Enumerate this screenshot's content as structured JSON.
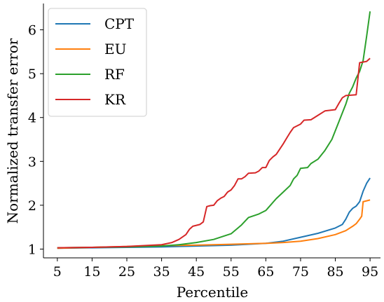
{
  "chart_data": {
    "type": "line",
    "title": "",
    "xlabel": "Percentile",
    "ylabel": "Normalized transfer error",
    "xlim": [
      1,
      98
    ],
    "ylim": [
      0.8,
      6.6
    ],
    "xticks": [
      5,
      15,
      25,
      35,
      45,
      55,
      65,
      75,
      85,
      95
    ],
    "yticks": [
      1,
      2,
      3,
      4,
      5,
      6
    ],
    "grid": false,
    "legend_position": "top-left",
    "series": [
      {
        "name": "CPT",
        "color": "#1f77b4",
        "points": [
          [
            5,
            1.02
          ],
          [
            15,
            1.03
          ],
          [
            25,
            1.04
          ],
          [
            35,
            1.05
          ],
          [
            45,
            1.07
          ],
          [
            55,
            1.09
          ],
          [
            65,
            1.13
          ],
          [
            70,
            1.18
          ],
          [
            75,
            1.27
          ],
          [
            80,
            1.36
          ],
          [
            85,
            1.48
          ],
          [
            87,
            1.56
          ],
          [
            88,
            1.68
          ],
          [
            89,
            1.84
          ],
          [
            90,
            1.93
          ],
          [
            91,
            1.98
          ],
          [
            92,
            2.08
          ],
          [
            93,
            2.32
          ],
          [
            94,
            2.5
          ],
          [
            95,
            2.62
          ]
        ]
      },
      {
        "name": "EU",
        "color": "#ff7f0e",
        "points": [
          [
            5,
            1.02
          ],
          [
            15,
            1.04
          ],
          [
            25,
            1.06
          ],
          [
            35,
            1.08
          ],
          [
            45,
            1.09
          ],
          [
            55,
            1.11
          ],
          [
            65,
            1.13
          ],
          [
            70,
            1.15
          ],
          [
            75,
            1.18
          ],
          [
            80,
            1.24
          ],
          [
            85,
            1.33
          ],
          [
            88,
            1.42
          ],
          [
            90,
            1.52
          ],
          [
            91,
            1.58
          ],
          [
            92,
            1.68
          ],
          [
            92.6,
            1.75
          ],
          [
            93,
            2.08
          ],
          [
            94,
            2.1
          ],
          [
            95,
            2.12
          ]
        ]
      },
      {
        "name": "RF",
        "color": "#2ca02c",
        "points": [
          [
            5,
            1.03
          ],
          [
            15,
            1.04
          ],
          [
            25,
            1.05
          ],
          [
            35,
            1.07
          ],
          [
            40,
            1.1
          ],
          [
            45,
            1.15
          ],
          [
            50,
            1.22
          ],
          [
            55,
            1.35
          ],
          [
            58,
            1.55
          ],
          [
            60,
            1.72
          ],
          [
            63,
            1.8
          ],
          [
            65,
            1.88
          ],
          [
            68,
            2.15
          ],
          [
            70,
            2.3
          ],
          [
            72,
            2.45
          ],
          [
            73,
            2.6
          ],
          [
            74,
            2.68
          ],
          [
            75,
            2.84
          ],
          [
            77,
            2.86
          ],
          [
            78,
            2.95
          ],
          [
            80,
            3.05
          ],
          [
            82,
            3.25
          ],
          [
            84,
            3.5
          ],
          [
            86,
            3.9
          ],
          [
            88,
            4.3
          ],
          [
            89,
            4.55
          ],
          [
            90,
            4.7
          ],
          [
            91,
            4.9
          ],
          [
            92,
            5.05
          ],
          [
            93,
            5.3
          ],
          [
            94,
            5.85
          ],
          [
            95,
            6.42
          ]
        ]
      },
      {
        "name": "KR",
        "color": "#d62728",
        "points": [
          [
            5,
            1.03
          ],
          [
            15,
            1.04
          ],
          [
            25,
            1.06
          ],
          [
            30,
            1.08
          ],
          [
            35,
            1.1
          ],
          [
            38,
            1.15
          ],
          [
            40,
            1.22
          ],
          [
            42,
            1.33
          ],
          [
            43,
            1.45
          ],
          [
            44,
            1.52
          ],
          [
            46,
            1.56
          ],
          [
            47,
            1.62
          ],
          [
            48,
            1.97
          ],
          [
            49,
            1.99
          ],
          [
            50,
            2.0
          ],
          [
            51,
            2.1
          ],
          [
            52,
            2.16
          ],
          [
            53,
            2.2
          ],
          [
            54,
            2.3
          ],
          [
            55,
            2.35
          ],
          [
            56,
            2.45
          ],
          [
            57,
            2.6
          ],
          [
            58,
            2.6
          ],
          [
            59,
            2.65
          ],
          [
            60,
            2.73
          ],
          [
            62,
            2.74
          ],
          [
            63,
            2.78
          ],
          [
            64,
            2.86
          ],
          [
            65,
            2.86
          ],
          [
            66,
            3.02
          ],
          [
            67,
            3.1
          ],
          [
            68,
            3.16
          ],
          [
            69,
            3.28
          ],
          [
            70,
            3.4
          ],
          [
            71,
            3.53
          ],
          [
            72,
            3.66
          ],
          [
            73,
            3.77
          ],
          [
            75,
            3.85
          ],
          [
            76,
            3.94
          ],
          [
            78,
            3.95
          ],
          [
            80,
            4.05
          ],
          [
            82,
            4.15
          ],
          [
            85,
            4.18
          ],
          [
            86,
            4.32
          ],
          [
            87,
            4.45
          ],
          [
            88,
            4.5
          ],
          [
            91,
            4.52
          ],
          [
            92,
            5.25
          ],
          [
            94,
            5.28
          ],
          [
            95,
            5.35
          ]
        ]
      }
    ]
  }
}
